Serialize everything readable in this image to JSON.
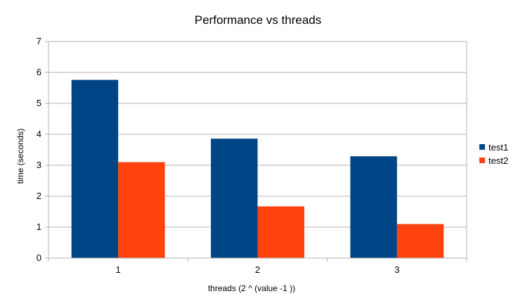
{
  "chart_data": {
    "type": "bar",
    "title": "Performance vs threads",
    "xlabel": "threads (2 ^ (value -1 ))",
    "ylabel": "time (seconds)",
    "categories": [
      "1",
      "2",
      "3"
    ],
    "series": [
      {
        "name": "test1",
        "color": "#004586",
        "values": [
          5.76,
          3.86,
          3.29
        ]
      },
      {
        "name": "test2",
        "color": "#ff420e",
        "values": [
          3.1,
          1.67,
          1.1
        ]
      }
    ],
    "ylim": [
      0,
      7
    ],
    "yticks": [
      "0",
      "1",
      "2",
      "3",
      "4",
      "5",
      "6",
      "7"
    ],
    "grid": true,
    "legend": "right"
  }
}
